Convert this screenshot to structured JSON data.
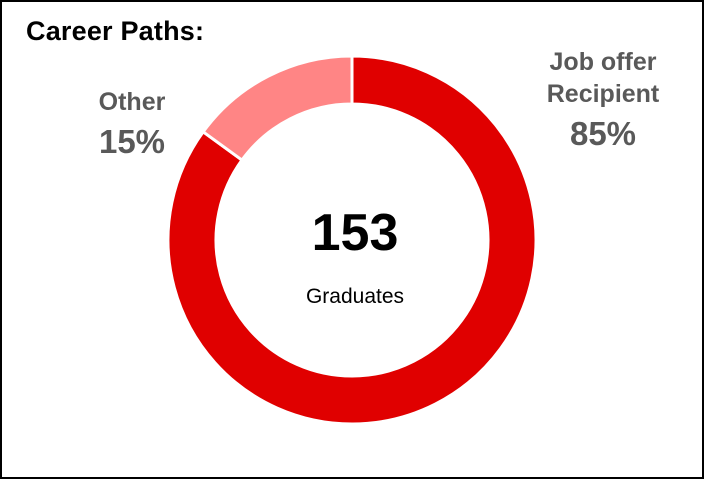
{
  "chart_data": {
    "type": "pie",
    "title": "Career Paths:",
    "center_value": "153",
    "center_label": "Graduates",
    "slices": [
      {
        "name": "Job offer Recipient",
        "name_lines": [
          "Job offer",
          "Recipient"
        ],
        "value": 85,
        "label": "85%",
        "color": "#E00000"
      },
      {
        "name": "Other",
        "name_lines": [
          "Other"
        ],
        "value": 15,
        "label": "15%",
        "color": "#FF8585"
      }
    ],
    "legend": "none"
  }
}
